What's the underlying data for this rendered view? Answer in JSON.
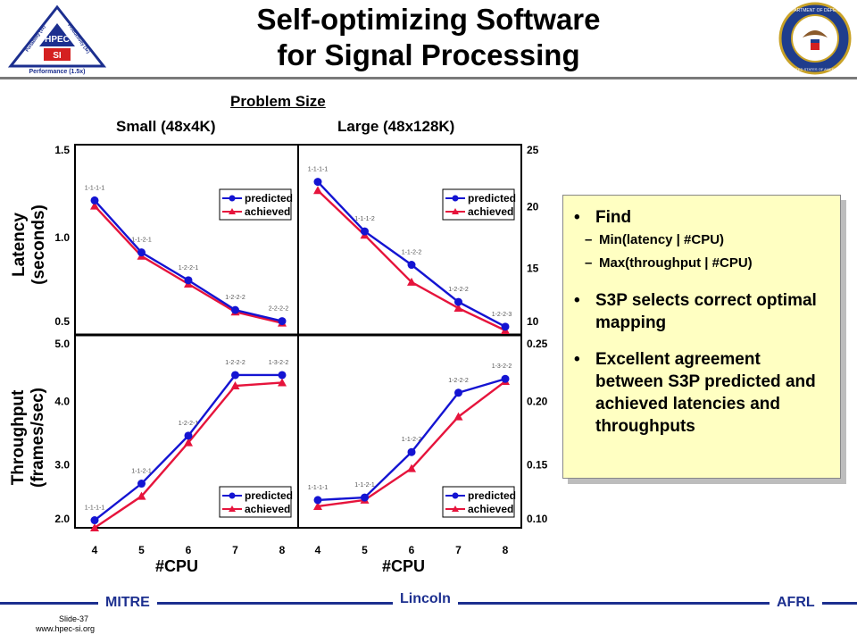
{
  "title_line1": "Self-optimizing Software",
  "title_line2": "for Signal Processing",
  "problem_size_label": "Problem Size",
  "small_label": "Small (48x4K)",
  "large_label": "Large (48x128K)",
  "latency_axis": [
    "Latency",
    "(seconds)"
  ],
  "throughput_axis": [
    "Throughput",
    "(frames/sec)"
  ],
  "xlabel": "#CPU",
  "logo_left": {
    "lines": [
      "Portability (3x)",
      "Productivity (3x)",
      "HPEC",
      "SI",
      "Performance (1.5x)"
    ]
  },
  "logo_right": {
    "lines": [
      "DEPARTMENT OF DEFENSE",
      "UNITED STATES OF AMERICA"
    ]
  },
  "info": {
    "bullet1": "Find",
    "sub1": "Min(latency | #CPU)",
    "sub2": "Max(throughput | #CPU)",
    "bullet2": "S3P selects correct optimal mapping",
    "bullet3": "Excellent agreement between S3P predicted and achieved latencies and throughputs"
  },
  "footer": {
    "left": "MITRE",
    "center": "Lincoln",
    "right": "AFRL",
    "slide": "Slide-37",
    "url": "www.hpec-si.org"
  },
  "colors": {
    "predicted": "#1414d2",
    "achieved": "#e6143c",
    "box": "#ffffc2",
    "footer": "#1c2f8f"
  },
  "chart_data": [
    {
      "type": "line",
      "panel": "latency-small",
      "x": [
        4,
        5,
        6,
        7,
        8
      ],
      "xticks": [
        "4",
        "5",
        "6",
        "7",
        "8"
      ],
      "xlim": [
        3.6,
        8.4
      ],
      "ylim": [
        0.5,
        1.5
      ],
      "yticks": [
        "0.5",
        "1.0",
        "1.5"
      ],
      "ylabel": "Latency (seconds)",
      "series": [
        {
          "name": "predicted",
          "marker": "circle",
          "values": [
            1.2,
            0.92,
            0.77,
            0.61,
            0.55
          ]
        },
        {
          "name": "achieved",
          "marker": "triangle",
          "values": [
            1.17,
            0.9,
            0.75,
            0.6,
            0.54
          ]
        }
      ],
      "point_labels": [
        "1-1-1-1",
        "1-1-2-1",
        "1-2-2-1",
        "1-2-2-2",
        "2-2-2-2"
      ],
      "legend": "top-right"
    },
    {
      "type": "line",
      "panel": "latency-large",
      "x": [
        4,
        5,
        6,
        7,
        8
      ],
      "xticks": [
        "4",
        "5",
        "6",
        "7",
        "8"
      ],
      "xlim": [
        3.6,
        8.4
      ],
      "ylim": [
        10,
        25
      ],
      "yticks": [
        "10",
        "15",
        "20",
        "25"
      ],
      "ylabel": "Latency (seconds)",
      "series": [
        {
          "name": "predicted",
          "marker": "circle",
          "values": [
            22.0,
            18.0,
            15.3,
            12.3,
            10.3
          ]
        },
        {
          "name": "achieved",
          "marker": "triangle",
          "values": [
            21.3,
            17.7,
            13.9,
            11.8,
            10.0
          ]
        }
      ],
      "point_labels": [
        "1-1-1-1",
        "1-1-1-2",
        "1-1-2-2",
        "1-2-2-2",
        "1-2-2-3"
      ],
      "legend": "top-right"
    },
    {
      "type": "line",
      "panel": "throughput-small",
      "x": [
        4,
        5,
        6,
        7,
        8
      ],
      "xticks": [
        "4",
        "5",
        "6",
        "7",
        "8"
      ],
      "xlim": [
        3.6,
        8.4
      ],
      "ylim": [
        2.0,
        5.0
      ],
      "yticks": [
        "2.0",
        "3.0",
        "4.0",
        "5.0"
      ],
      "ylabel": "Throughput (frames/sec)",
      "series": [
        {
          "name": "predicted",
          "marker": "circle",
          "values": [
            2.12,
            2.7,
            3.46,
            4.42,
            4.42
          ]
        },
        {
          "name": "achieved",
          "marker": "triangle",
          "values": [
            2.0,
            2.5,
            3.35,
            4.25,
            4.3
          ]
        }
      ],
      "point_labels": [
        "1-1-1-1",
        "1-1-2-1",
        "1-2-2-1",
        "1-2-2-2",
        "1-3-2-2"
      ],
      "legend": "bottom-right"
    },
    {
      "type": "line",
      "panel": "throughput-large",
      "x": [
        4,
        5,
        6,
        7,
        8
      ],
      "xticks": [
        "4",
        "5",
        "6",
        "7",
        "8"
      ],
      "xlim": [
        3.6,
        8.4
      ],
      "ylim": [
        0.1,
        0.25
      ],
      "yticks": [
        "0.10",
        "0.15",
        "0.20",
        "0.25"
      ],
      "ylabel": "Throughput (frames/sec)",
      "series": [
        {
          "name": "predicted",
          "marker": "circle",
          "values": [
            0.122,
            0.124,
            0.16,
            0.207,
            0.218
          ]
        },
        {
          "name": "achieved",
          "marker": "triangle",
          "values": [
            0.117,
            0.122,
            0.147,
            0.188,
            0.216
          ]
        }
      ],
      "point_labels": [
        "1-1-1-1",
        "1-1-2-1",
        "1-1-2-2",
        "1-2-2-2",
        "1-3-2-2"
      ],
      "legend": "bottom-right"
    }
  ]
}
